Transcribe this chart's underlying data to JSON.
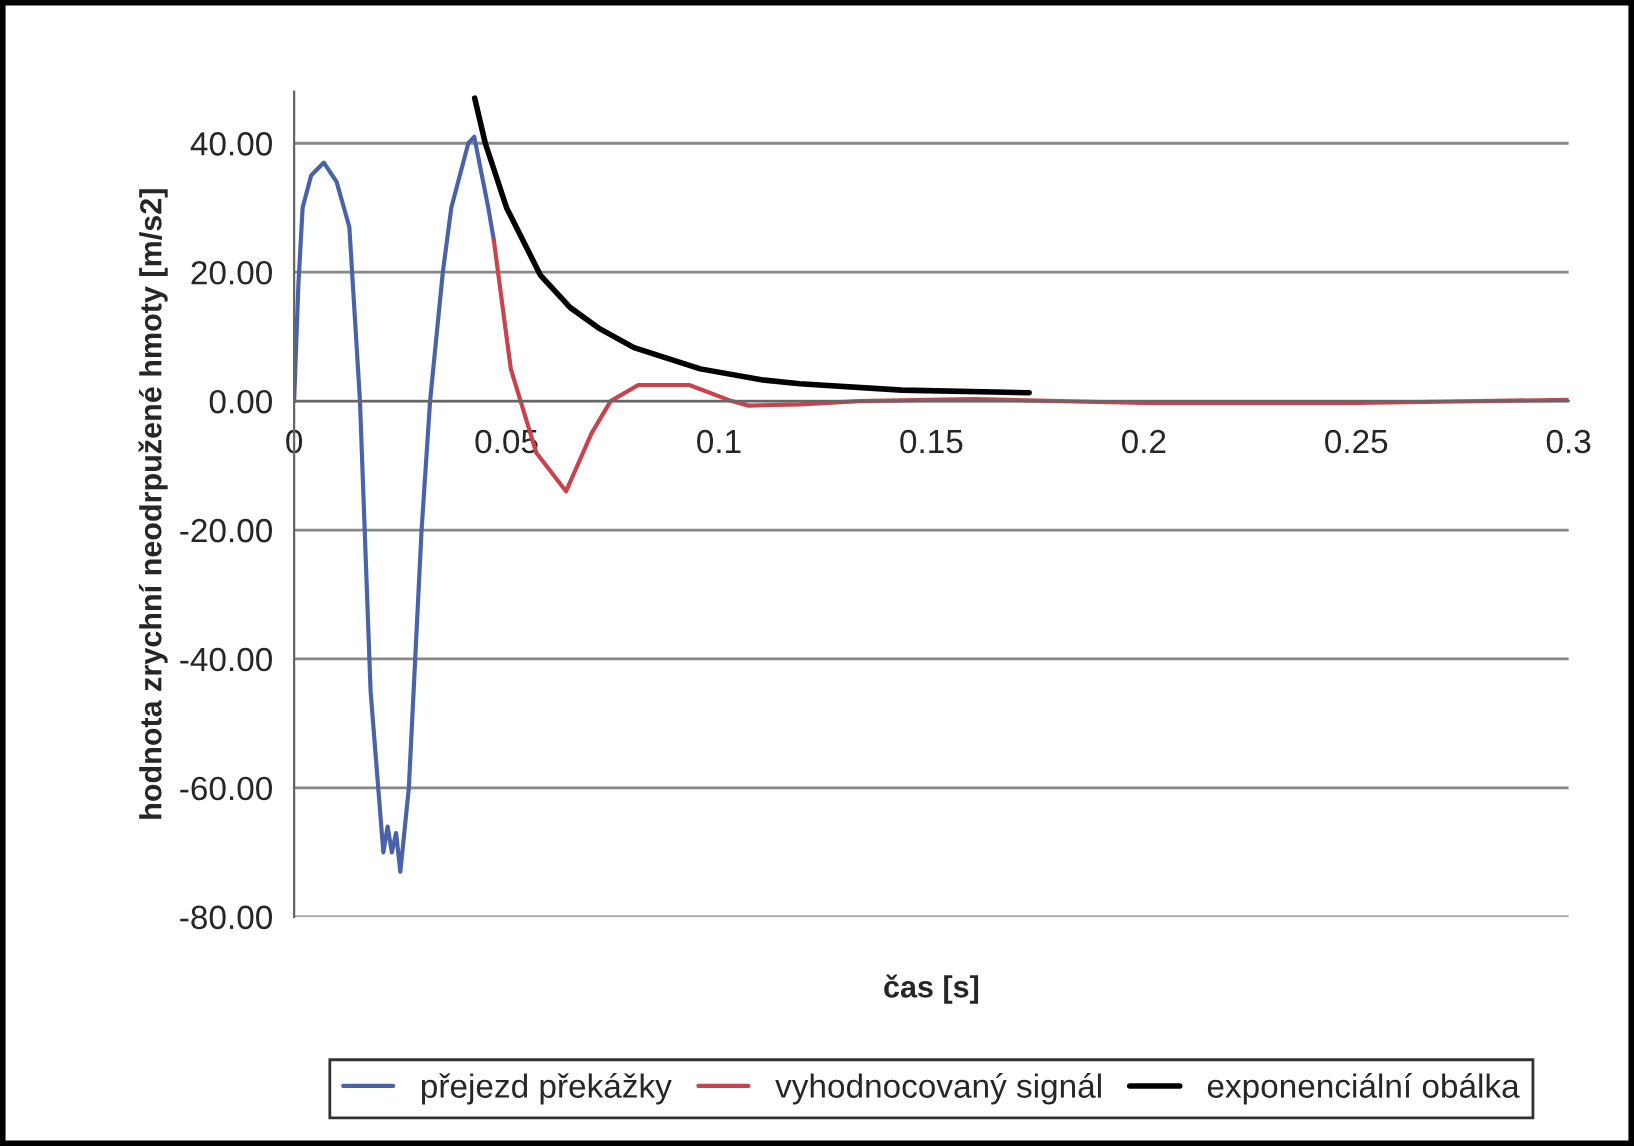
{
  "chart_data": {
    "type": "line",
    "xlabel": "čas [s]",
    "ylabel": "hodnota zrychní neodrpužené hmoty [m/s2]",
    "xlim": [
      0,
      0.3
    ],
    "xticks": [
      {
        "value": 0,
        "label": "0"
      },
      0.05,
      0.1,
      0.15,
      0.2,
      0.25,
      0.3
    ],
    "ylim": [
      -80,
      48
    ],
    "yticks": [
      {
        "value": -80,
        "label": "-80.00"
      },
      {
        "value": -60,
        "label": "-60.00"
      },
      {
        "value": -40,
        "label": "-40.00"
      },
      {
        "value": -20,
        "label": "-20.00"
      },
      {
        "value": 0,
        "label": "0.00"
      },
      {
        "value": 20,
        "label": "20.00"
      },
      {
        "value": 40,
        "label": "40.00"
      }
    ],
    "grid": "y",
    "legend": "bottom",
    "marker": "none",
    "line_style": "solid",
    "series": [
      {
        "name": "přejezd překážky",
        "color": "#4a62a8",
        "x": [
          0,
          0.001,
          0.002,
          0.004,
          0.007,
          0.01,
          0.013,
          0.0155,
          0.018,
          0.021,
          0.022,
          0.023,
          0.024,
          0.025,
          0.027,
          0.03,
          0.032,
          0.035,
          0.037,
          0.041,
          0.0424,
          0.0457,
          0.047
        ],
        "values": [
          0,
          18,
          30,
          35,
          37,
          34,
          27,
          0,
          -45,
          -70,
          -66,
          -70,
          -67,
          -73,
          -60,
          -20,
          0,
          20,
          30,
          40,
          41,
          30,
          25
        ]
      },
      {
        "name": "vyhodnocovaný signál",
        "color": "#c8434d",
        "x": [
          0.047,
          0.051,
          0.057,
          0.064,
          0.07,
          0.0745,
          0.081,
          0.093,
          0.103,
          0.107,
          0.119,
          0.133,
          0.16,
          0.2,
          0.25,
          0.3
        ],
        "values": [
          25,
          5,
          -8,
          -14,
          -5,
          0,
          2.5,
          2.5,
          0,
          -0.7,
          -0.5,
          0,
          0.3,
          -0.3,
          -0.3,
          0.2
        ]
      },
      {
        "name": "exponenciální obálka",
        "color": "#000000",
        "x": [
          0.0425,
          0.045,
          0.05,
          0.058,
          0.065,
          0.072,
          0.08,
          0.0956,
          0.11,
          0.119,
          0.143,
          0.173
        ],
        "values": [
          47,
          40,
          30,
          19.5,
          14.5,
          11.2,
          8.3,
          5,
          3.3,
          2.7,
          1.7,
          1.3
        ]
      }
    ]
  }
}
